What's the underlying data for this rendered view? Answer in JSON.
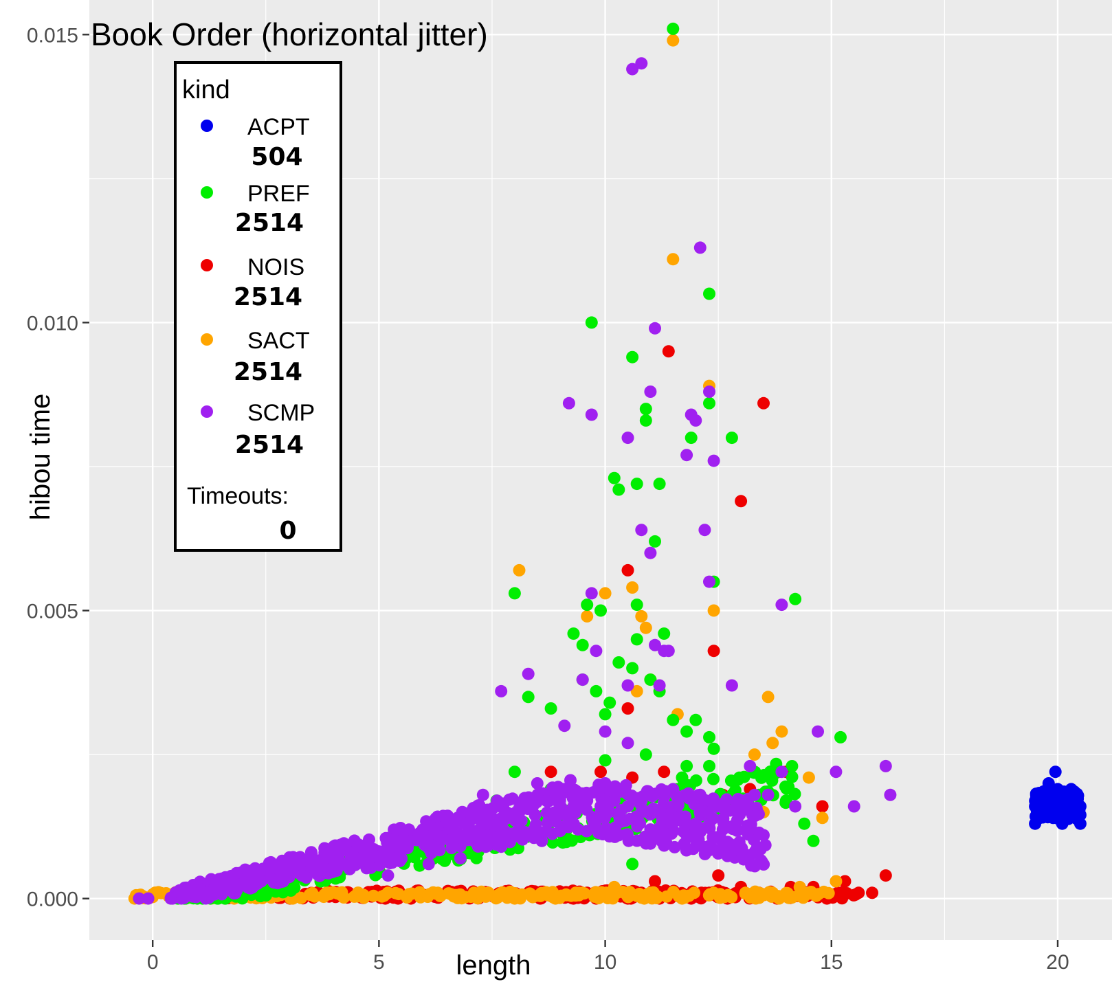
{
  "chart_data": {
    "type": "scatter",
    "title": "Book Order (horizontal jitter)",
    "xlabel": "length",
    "ylabel": "hibou time",
    "xlim": [
      -1.4,
      21.2
    ],
    "ylim": [
      -0.00072,
      0.0156
    ],
    "x_ticks": [
      0,
      5,
      10,
      15,
      20
    ],
    "x_tick_labels": [
      "0",
      "5",
      "10",
      "15",
      "20"
    ],
    "y_ticks": [
      0.0,
      0.005,
      0.01,
      0.015
    ],
    "y_tick_labels": [
      "0.000",
      "0.005",
      "0.010",
      "0.015"
    ],
    "grid": true,
    "background": "#ebebeb",
    "legend": {
      "title": "kind",
      "position": "top-left, inside plot",
      "entries": [
        {
          "label": "ACPT",
          "count": "504",
          "color": "#0000ee"
        },
        {
          "label": "PREF",
          "count": "2514",
          "color": "#00ee00"
        },
        {
          "label": "NOIS",
          "count": "2514",
          "color": "#ee0000"
        },
        {
          "label": "SACT",
          "count": "2514",
          "color": "#ffa500"
        },
        {
          "label": "SCMP",
          "count": "2514",
          "color": "#a020f0"
        }
      ],
      "timeouts_label": "Timeouts:",
      "timeouts_value": "0"
    },
    "series": [
      {
        "name": "NOIS",
        "color": "#ee0000",
        "points": [
          [
            9.3,
            0.0
          ],
          [
            9.6,
            0.0001
          ],
          [
            9.8,
            0.0
          ],
          [
            10.1,
            0.0001
          ],
          [
            10.5,
            0.0
          ],
          [
            10.8,
            0.0001
          ],
          [
            11.2,
            0.0
          ],
          [
            11.5,
            0.0001
          ],
          [
            11.9,
            0.0
          ],
          [
            12.3,
            0.0001
          ],
          [
            12.7,
            0.0
          ],
          [
            13.0,
            0.0002
          ],
          [
            13.4,
            0.0001
          ],
          [
            13.8,
            0.0
          ],
          [
            14.1,
            0.0002
          ],
          [
            14.3,
            0.0001
          ],
          [
            14.6,
            0.0002
          ],
          [
            14.9,
            0.0
          ],
          [
            15.3,
            0.0003
          ],
          [
            15.6,
            0.0001
          ],
          [
            15.9,
            0.0001
          ],
          [
            16.2,
            0.0004
          ],
          [
            11.1,
            0.0003
          ],
          [
            12.5,
            0.0004
          ],
          [
            8.8,
            0.0022
          ],
          [
            9.9,
            0.0022
          ],
          [
            10.6,
            0.0021
          ],
          [
            11.3,
            0.0022
          ],
          [
            11.8,
            0.0019
          ],
          [
            12.6,
            0.0018
          ],
          [
            13.2,
            0.0019
          ],
          [
            14.0,
            0.0022
          ],
          [
            14.8,
            0.0016
          ],
          [
            10.5,
            0.0033
          ],
          [
            12.4,
            0.0043
          ],
          [
            10.5,
            0.0057
          ],
          [
            11.4,
            0.0095
          ],
          [
            13.0,
            0.0069
          ],
          [
            13.5,
            0.0086
          ]
        ]
      },
      {
        "name": "SACT",
        "color": "#ffa500",
        "points": [
          [
            -0.4,
            0.0
          ],
          [
            1.8,
            0.0
          ],
          [
            2.8,
            0.0001
          ],
          [
            3.9,
            0.0001
          ],
          [
            5.2,
            0.0001
          ],
          [
            6.3,
            0.0001
          ],
          [
            7.1,
            0.0001
          ],
          [
            8.0,
            0.0
          ],
          [
            8.9,
            0.0
          ],
          [
            9.5,
            0.0001
          ],
          [
            10.2,
            0.0002
          ],
          [
            11.0,
            0.0001
          ],
          [
            11.7,
            0.0
          ],
          [
            12.4,
            0.0001
          ],
          [
            13.1,
            0.0001
          ],
          [
            13.7,
            0.0001
          ],
          [
            14.3,
            0.0002
          ],
          [
            15.1,
            0.0003
          ],
          [
            8.1,
            0.0057
          ],
          [
            10.0,
            0.0053
          ],
          [
            10.6,
            0.0054
          ],
          [
            10.8,
            0.0049
          ],
          [
            11.5,
            0.0111
          ],
          [
            11.5,
            0.0149
          ],
          [
            12.3,
            0.0089
          ],
          [
            12.4,
            0.005
          ],
          [
            11.0,
            0.0038
          ],
          [
            10.7,
            0.0036
          ],
          [
            11.6,
            0.0032
          ],
          [
            13.6,
            0.0035
          ],
          [
            13.9,
            0.0029
          ],
          [
            13.7,
            0.0027
          ],
          [
            13.3,
            0.0025
          ],
          [
            14.5,
            0.0021
          ],
          [
            13.5,
            0.0015
          ],
          [
            14.8,
            0.0014
          ],
          [
            9.6,
            0.0049
          ],
          [
            10.9,
            0.0047
          ]
        ]
      },
      {
        "name": "PREF",
        "color": "#00ee00",
        "points": [
          [
            11.5,
            0.0151
          ],
          [
            12.3,
            0.0105
          ],
          [
            9.7,
            0.01
          ],
          [
            10.6,
            0.0094
          ],
          [
            12.3,
            0.0086
          ],
          [
            10.9,
            0.0085
          ],
          [
            10.9,
            0.0083
          ],
          [
            11.9,
            0.008
          ],
          [
            12.8,
            0.008
          ],
          [
            10.2,
            0.0073
          ],
          [
            10.7,
            0.0072
          ],
          [
            11.2,
            0.0072
          ],
          [
            10.3,
            0.0071
          ],
          [
            11.1,
            0.0062
          ],
          [
            8.0,
            0.0053
          ],
          [
            9.6,
            0.0051
          ],
          [
            9.9,
            0.005
          ],
          [
            10.7,
            0.0051
          ],
          [
            12.4,
            0.0055
          ],
          [
            14.2,
            0.0052
          ],
          [
            9.3,
            0.0046
          ],
          [
            9.5,
            0.0044
          ],
          [
            10.7,
            0.0045
          ],
          [
            11.3,
            0.0046
          ],
          [
            10.3,
            0.0041
          ],
          [
            10.6,
            0.004
          ],
          [
            9.5,
            0.0038
          ],
          [
            11.0,
            0.0038
          ],
          [
            9.8,
            0.0036
          ],
          [
            11.2,
            0.0036
          ],
          [
            10.1,
            0.0034
          ],
          [
            8.3,
            0.0035
          ],
          [
            8.8,
            0.0033
          ],
          [
            10.0,
            0.0032
          ],
          [
            11.5,
            0.0031
          ],
          [
            12.0,
            0.0031
          ],
          [
            11.8,
            0.0029
          ],
          [
            12.3,
            0.0028
          ],
          [
            12.4,
            0.0026
          ],
          [
            15.2,
            0.0028
          ],
          [
            10.9,
            0.0025
          ],
          [
            11.8,
            0.0023
          ],
          [
            12.3,
            0.0023
          ],
          [
            8.0,
            0.0022
          ],
          [
            8.8,
            0.0019
          ],
          [
            10.0,
            0.0024
          ],
          [
            11.7,
            0.0021
          ],
          [
            13.4,
            0.0018
          ],
          [
            14.0,
            0.0017
          ],
          [
            14.4,
            0.0013
          ],
          [
            14.6,
            0.001
          ],
          [
            10.6,
            0.0006
          ],
          [
            7.0,
            0.0014
          ],
          [
            7.6,
            0.0017
          ],
          [
            6.0,
            0.0012
          ],
          [
            4.5,
            0.0008
          ]
        ]
      },
      {
        "name": "SCMP",
        "color": "#a020f0",
        "points": [
          [
            -0.3,
            0.0
          ],
          [
            -0.1,
            0.0
          ],
          [
            0.4,
            0.0
          ],
          [
            0.6,
            0.0001
          ],
          [
            0.9,
            0.0001
          ],
          [
            1.2,
            0.0001
          ],
          [
            1.5,
            0.0002
          ],
          [
            1.8,
            0.0002
          ],
          [
            2.1,
            0.0002
          ],
          [
            2.4,
            0.0003
          ],
          [
            2.7,
            0.0003
          ],
          [
            3.0,
            0.0004
          ],
          [
            3.3,
            0.0004
          ],
          [
            3.6,
            0.0005
          ],
          [
            3.9,
            0.0005
          ],
          [
            4.2,
            0.0006
          ],
          [
            4.5,
            0.0006
          ],
          [
            4.8,
            0.0007
          ],
          [
            5.1,
            0.0008
          ],
          [
            5.4,
            0.0009
          ],
          [
            5.7,
            0.001
          ],
          [
            6.0,
            0.0011
          ],
          [
            6.3,
            0.0011
          ],
          [
            6.6,
            0.0012
          ],
          [
            6.9,
            0.0013
          ],
          [
            7.2,
            0.0014
          ],
          [
            7.5,
            0.0014
          ],
          [
            7.8,
            0.0015
          ],
          [
            8.1,
            0.0015
          ],
          [
            8.4,
            0.0016
          ],
          [
            8.7,
            0.0017
          ],
          [
            9.0,
            0.0017
          ],
          [
            9.3,
            0.0016
          ],
          [
            9.6,
            0.0017
          ],
          [
            9.9,
            0.0016
          ],
          [
            10.2,
            0.0017
          ],
          [
            10.5,
            0.0016
          ],
          [
            10.8,
            0.0015
          ],
          [
            11.1,
            0.0015
          ],
          [
            11.4,
            0.0014
          ],
          [
            11.7,
            0.0014
          ],
          [
            12.0,
            0.0013
          ],
          [
            12.3,
            0.0013
          ],
          [
            12.6,
            0.0012
          ],
          [
            12.9,
            0.0012
          ],
          [
            13.2,
            0.0012
          ],
          [
            13.5,
            0.0011
          ],
          [
            5.2,
            0.0004
          ],
          [
            6.1,
            0.0006
          ],
          [
            6.8,
            0.0007
          ],
          [
            7.7,
            0.0009
          ],
          [
            8.6,
            0.001
          ],
          [
            9.4,
            0.0012
          ],
          [
            10.3,
            0.0011
          ],
          [
            11.0,
            0.0012
          ],
          [
            11.8,
            0.0011
          ],
          [
            12.6,
            0.0009
          ],
          [
            7.3,
            0.0018
          ],
          [
            8.5,
            0.002
          ],
          [
            9.1,
            0.0019
          ],
          [
            10.0,
            0.002
          ],
          [
            11.5,
            0.0019
          ],
          [
            12.1,
            0.0018
          ],
          [
            10.6,
            0.0144
          ],
          [
            10.8,
            0.0145
          ],
          [
            12.1,
            0.0113
          ],
          [
            11.1,
            0.0099
          ],
          [
            9.2,
            0.0086
          ],
          [
            9.7,
            0.0084
          ],
          [
            11.0,
            0.0088
          ],
          [
            12.3,
            0.0088
          ],
          [
            11.9,
            0.0084
          ],
          [
            12.0,
            0.0083
          ],
          [
            10.5,
            0.008
          ],
          [
            11.8,
            0.0077
          ],
          [
            12.4,
            0.0076
          ],
          [
            12.2,
            0.0064
          ],
          [
            10.8,
            0.0064
          ],
          [
            11.0,
            0.006
          ],
          [
            9.7,
            0.0053
          ],
          [
            13.9,
            0.0051
          ],
          [
            12.3,
            0.0055
          ],
          [
            9.8,
            0.0043
          ],
          [
            11.1,
            0.0044
          ],
          [
            11.3,
            0.0043
          ],
          [
            11.4,
            0.0043
          ],
          [
            11.2,
            0.0037
          ],
          [
            10.5,
            0.0037
          ],
          [
            9.5,
            0.0038
          ],
          [
            8.3,
            0.0039
          ],
          [
            7.7,
            0.0036
          ],
          [
            9.1,
            0.003
          ],
          [
            10.0,
            0.0029
          ],
          [
            10.5,
            0.0027
          ],
          [
            12.8,
            0.0037
          ],
          [
            14.7,
            0.0029
          ],
          [
            13.2,
            0.0023
          ],
          [
            13.9,
            0.0022
          ],
          [
            15.1,
            0.0022
          ],
          [
            16.2,
            0.0023
          ],
          [
            16.3,
            0.0018
          ],
          [
            15.5,
            0.0016
          ],
          [
            14.2,
            0.0016
          ],
          [
            13.3,
            0.0018
          ],
          [
            13.6,
            0.0018
          ]
        ]
      },
      {
        "name": "ACPT",
        "color": "#0000ee",
        "points": [
          [
            19.5,
            0.0016
          ],
          [
            19.6,
            0.0017
          ],
          [
            19.7,
            0.0015
          ],
          [
            19.8,
            0.0018
          ],
          [
            19.9,
            0.0016
          ],
          [
            20.0,
            0.0017
          ],
          [
            20.1,
            0.0015
          ],
          [
            20.2,
            0.0016
          ],
          [
            20.3,
            0.0017
          ],
          [
            20.4,
            0.0015
          ],
          [
            20.5,
            0.0016
          ],
          [
            19.6,
            0.0014
          ],
          [
            19.9,
            0.0014
          ],
          [
            20.2,
            0.0014
          ],
          [
            20.4,
            0.0018
          ],
          [
            19.5,
            0.0013
          ],
          [
            20.1,
            0.0013
          ],
          [
            20.5,
            0.0013
          ],
          [
            19.95,
            0.0022
          ],
          [
            19.8,
            0.002
          ],
          [
            20.0,
            0.0019
          ],
          [
            19.7,
            0.0018
          ],
          [
            20.3,
            0.0019
          ]
        ]
      }
    ]
  }
}
